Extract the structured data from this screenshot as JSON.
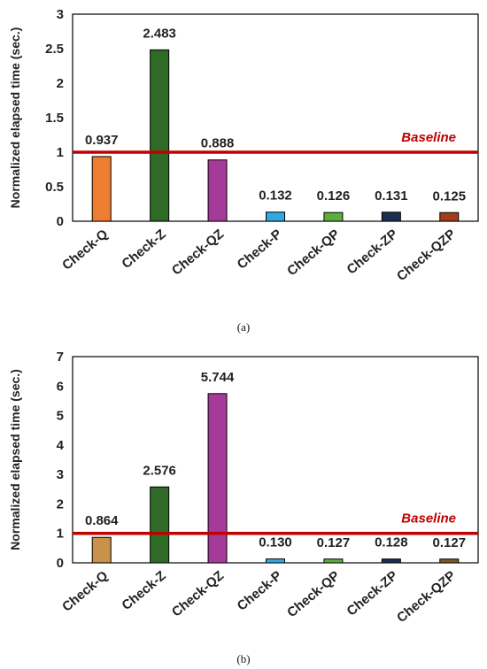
{
  "chart_data": [
    {
      "type": "bar",
      "caption": "(a)",
      "ylabel": "Normalized elapsed time (sec.)",
      "ylim": [
        0,
        3
      ],
      "yticks": [
        "0",
        "0.5",
        "1",
        "1.5",
        "2",
        "2.5",
        "3"
      ],
      "ytick_values": [
        0,
        0.5,
        1,
        1.5,
        2,
        2.5,
        3
      ],
      "categories": [
        "Check-Q",
        "Check-Z",
        "Check-QZ",
        "Check-P",
        "Check-QP",
        "Check-ZP",
        "Check-QZP"
      ],
      "values": [
        0.937,
        2.483,
        0.888,
        0.132,
        0.126,
        0.131,
        0.125
      ],
      "value_labels": [
        "0.937",
        "2.483",
        "0.888",
        "0.132",
        "0.126",
        "0.131",
        "0.125"
      ],
      "bar_colors": [
        "#ED7D31",
        "#2E6B26",
        "#A63A9B",
        "#33A8DE",
        "#5BAE3A",
        "#1B3050",
        "#A33E1C"
      ],
      "baseline": {
        "label": "Baseline",
        "value": 1,
        "color": "#C00000"
      },
      "grid": false
    },
    {
      "type": "bar",
      "caption": "(b)",
      "ylabel": "Normalized elapsed time (sec.)",
      "ylim": [
        0,
        7
      ],
      "yticks": [
        "0",
        "1",
        "2",
        "3",
        "4",
        "5",
        "6",
        "7"
      ],
      "ytick_values": [
        0,
        1,
        2,
        3,
        4,
        5,
        6,
        7
      ],
      "categories": [
        "Check-Q",
        "Check-Z",
        "Check-QZ",
        "Check-P",
        "Check-QP",
        "Check-ZP",
        "Check-QZP"
      ],
      "values": [
        0.864,
        2.576,
        5.744,
        0.13,
        0.127,
        0.128,
        0.127
      ],
      "value_labels": [
        "0.864",
        "2.576",
        "5.744",
        "0.130",
        "0.127",
        "0.128",
        "0.127"
      ],
      "bar_colors": [
        "#C8924A",
        "#2E6B26",
        "#A63A9B",
        "#33A8DE",
        "#5BAE3A",
        "#1B3050",
        "#7A5A2A"
      ],
      "baseline": {
        "label": "Baseline",
        "value": 1,
        "color": "#C00000"
      },
      "grid": false
    }
  ]
}
